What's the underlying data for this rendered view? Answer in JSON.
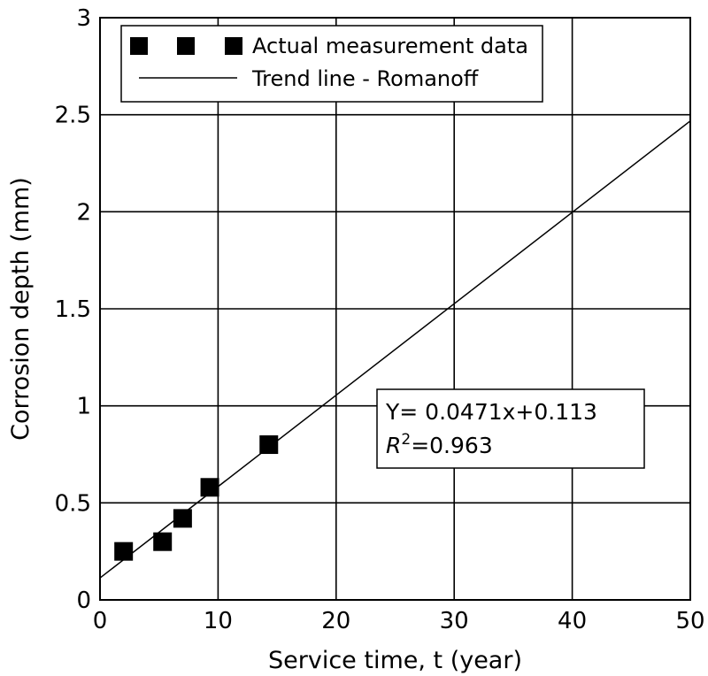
{
  "chart_data": {
    "type": "scatter",
    "xlabel": "Service time, t (year)",
    "ylabel": "Corrosion depth (mm)",
    "xlim": [
      0,
      50
    ],
    "ylim": [
      0,
      3
    ],
    "xticks": [
      0,
      10,
      20,
      30,
      40,
      50
    ],
    "xtick_labels": [
      "0",
      "10",
      "20",
      "30",
      "40",
      "50"
    ],
    "yticks": [
      0,
      0.5,
      1,
      1.5,
      2,
      2.5,
      3
    ],
    "ytick_labels": [
      "0",
      "0.5",
      "1",
      "1.5",
      "2",
      "2.5",
      "3"
    ],
    "grid": true,
    "legend_position": "top-left",
    "series": [
      {
        "name": "Actual measurement data",
        "marker": "square",
        "color": "#000000",
        "points": [
          {
            "x": 2,
            "y": 0.25
          },
          {
            "x": 5.3,
            "y": 0.3
          },
          {
            "x": 7,
            "y": 0.42
          },
          {
            "x": 9.3,
            "y": 0.58
          },
          {
            "x": 14.3,
            "y": 0.8
          }
        ]
      },
      {
        "name": "Trend line - Romanoff",
        "line": true,
        "color": "#000000",
        "slope": 0.0471,
        "intercept": 0.113,
        "x_range": [
          0,
          50
        ]
      }
    ],
    "annotations": {
      "equation_line1": "Y=  0.0471x+0.113",
      "r2_var": "R",
      "r2_exp": "2",
      "r2_value": "=0.963"
    }
  }
}
